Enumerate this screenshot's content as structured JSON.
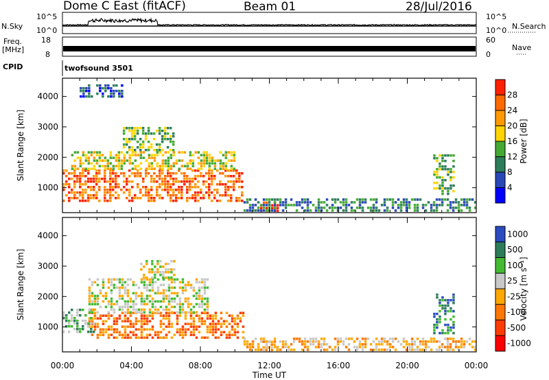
{
  "header": {
    "station": "Dome C East (fitACF)",
    "beam": "Beam 01",
    "date": "28/Jul/2016"
  },
  "strip_labels": {
    "nsky": "N.Sky",
    "nsky_ticks": [
      "10^5",
      "10^0"
    ],
    "nsearch": "N.Search",
    "nsearch_ticks": [
      "10^5",
      "10^0"
    ],
    "freq_line1": "Freq.",
    "freq_line2": "[MHz]",
    "freq_ticks": [
      "18",
      "8"
    ],
    "nave": "Nave",
    "nave_ticks": [
      "60",
      "0"
    ],
    "cpid": "CPID",
    "cpid_name": "twofsound 3501"
  },
  "colors": {
    "power_scale": [
      "#0000ff",
      "#2848b8",
      "#2e7d5a",
      "#44aa33",
      "#ffd400",
      "#ff9a00",
      "#ff6a00",
      "#ff2200"
    ],
    "velocity_scale": [
      "#ff0000",
      "#ff3c00",
      "#ff7800",
      "#ffa800",
      "#c8c8c8",
      "#44bb33",
      "#2e7d5a",
      "#2b4cc0"
    ]
  },
  "chart_data": [
    {
      "type": "heatmap",
      "title": "Power",
      "ylabel": "Slant Range [km]",
      "xlabel": "",
      "x_range_hours": [
        0,
        24
      ],
      "ylim": [
        180,
        4600
      ],
      "yticks": [
        1000,
        2000,
        3000,
        4000
      ],
      "colorbar": {
        "label": "Power [dB]",
        "range": [
          0,
          32
        ],
        "tick_labels": [
          "4",
          "8",
          "12",
          "16",
          "20",
          "24",
          "28"
        ]
      },
      "regions": [
        {
          "t0": 0.0,
          "t1": 10.5,
          "r0": 600,
          "r1": 1600,
          "level": 26
        },
        {
          "t0": 0.5,
          "t1": 10.0,
          "r0": 1600,
          "r1": 2200,
          "level": 16
        },
        {
          "t0": 3.5,
          "t1": 6.5,
          "r0": 2200,
          "r1": 3000,
          "level": 14
        },
        {
          "t0": 11.3,
          "t1": 12.5,
          "r0": 250,
          "r1": 550,
          "level": 28
        },
        {
          "t0": 10.5,
          "t1": 24.0,
          "r0": 200,
          "r1": 650,
          "level": 10
        },
        {
          "t0": 21.5,
          "t1": 22.7,
          "r0": 800,
          "r1": 2100,
          "level": 14
        },
        {
          "t0": 1.0,
          "t1": 3.5,
          "r0": 4000,
          "r1": 4400,
          "level": 6
        }
      ]
    },
    {
      "type": "heatmap",
      "title": "Velocity",
      "ylabel": "Slant Range [km]",
      "xlabel": "Time UT",
      "x_range_hours": [
        0,
        24
      ],
      "xtick_labels": [
        "00:00",
        "04:00",
        "08:00",
        "12:00",
        "16:00",
        "20:00",
        "00:00"
      ],
      "ylim": [
        180,
        4600
      ],
      "yticks": [
        1000,
        2000,
        3000,
        4000
      ],
      "colorbar": {
        "label": "Velocity [m s⁻¹]",
        "range": [
          -1200,
          1200
        ],
        "tick_labels": [
          "1000",
          "500",
          "100",
          "25",
          "-25",
          "-100",
          "-500",
          "-1000"
        ]
      },
      "regions": [
        {
          "t0": 1.5,
          "t1": 10.5,
          "r0": 600,
          "r1": 1500,
          "level": 2
        },
        {
          "t0": 0.0,
          "t1": 1.8,
          "r0": 800,
          "r1": 1600,
          "level": 5
        },
        {
          "t0": 1.5,
          "t1": 8.5,
          "r0": 1500,
          "r1": 2600,
          "level": 4
        },
        {
          "t0": 4.5,
          "t1": 6.5,
          "r0": 2600,
          "r1": 3200,
          "level": 4
        },
        {
          "t0": 11.6,
          "t1": 12.5,
          "r0": 250,
          "r1": 550,
          "level": 3
        },
        {
          "t0": 10.5,
          "t1": 24.0,
          "r0": 200,
          "r1": 650,
          "level": 3
        },
        {
          "t0": 21.5,
          "t1": 22.7,
          "r0": 800,
          "r1": 2100,
          "level": 6
        }
      ]
    }
  ]
}
